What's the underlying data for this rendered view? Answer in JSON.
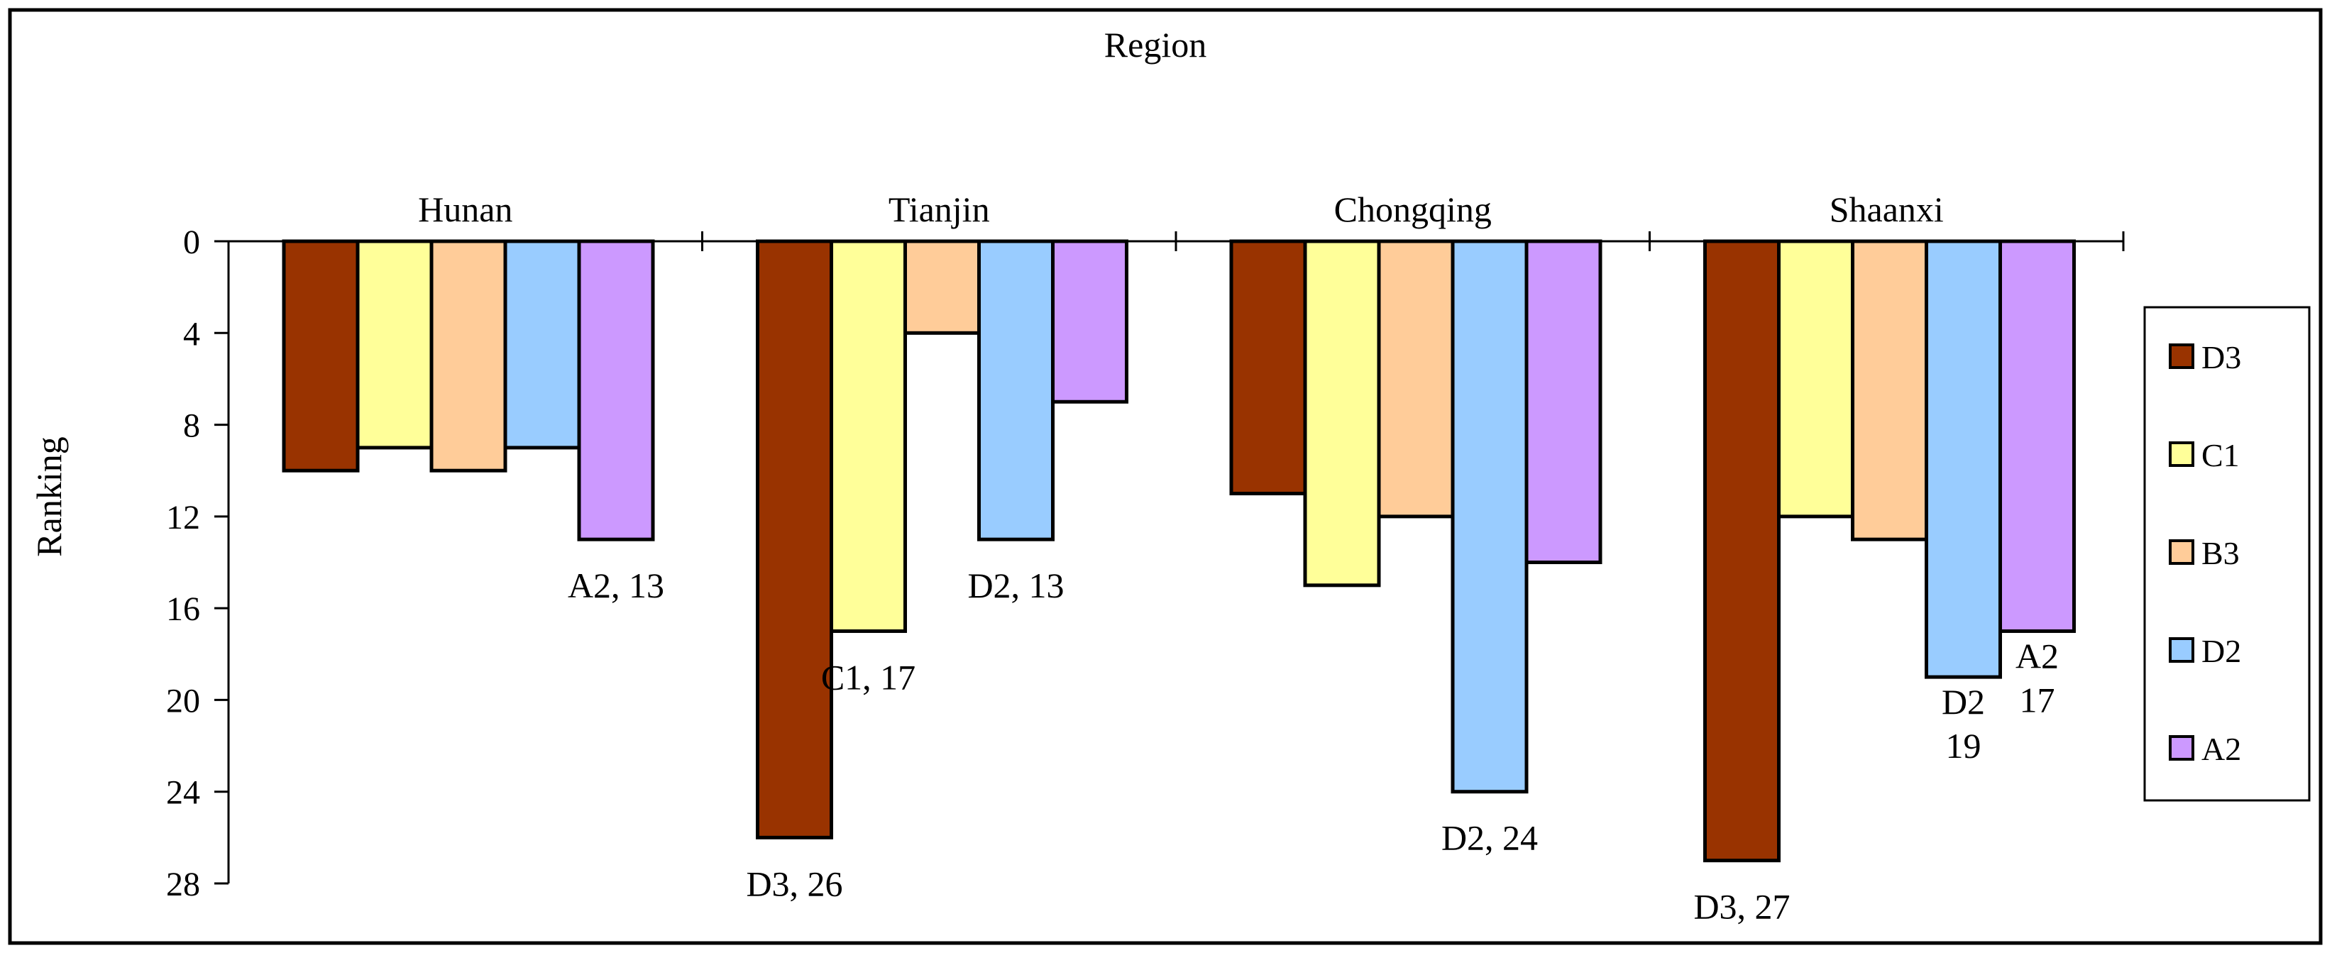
{
  "chart_data": {
    "type": "bar",
    "title": "Region",
    "xlabel": "Region",
    "ylabel": "Ranking",
    "ylim": [
      0,
      28
    ],
    "y_ticks": [
      0,
      4,
      8,
      12,
      16,
      20,
      24,
      28
    ],
    "y_tick_labels": [
      "0",
      "4",
      "8",
      "12",
      "16",
      "20",
      "24",
      "28"
    ],
    "y_inverted": true,
    "x_axis_position": "top",
    "legend_position": "right",
    "categories": [
      "Hunan",
      "Tianjin",
      "Chongqing",
      "Shaanxi"
    ],
    "series": [
      {
        "name": "D3",
        "color": "#993300",
        "values": [
          10,
          26,
          11,
          27
        ]
      },
      {
        "name": "C1",
        "color": "#FFFF99",
        "values": [
          9,
          17,
          15,
          12
        ]
      },
      {
        "name": "B3",
        "color": "#FFCC99",
        "values": [
          10,
          4,
          12,
          13
        ]
      },
      {
        "name": "D2",
        "color": "#99CCFF",
        "values": [
          9,
          13,
          24,
          19
        ]
      },
      {
        "name": "A2",
        "color": "#CC99FF",
        "values": [
          13,
          7,
          14,
          17
        ]
      }
    ],
    "data_labels": [
      {
        "category": "Hunan",
        "series": "A2",
        "text": "A2, 13"
      },
      {
        "category": "Tianjin",
        "series": "D3",
        "text": "D3, 26"
      },
      {
        "category": "Tianjin",
        "series": "C1",
        "text": "C1, 17"
      },
      {
        "category": "Tianjin",
        "series": "D2",
        "text": "D2, 13"
      },
      {
        "category": "Chongqing",
        "series": "D2",
        "text": "D2, 24"
      },
      {
        "category": "Shaanxi",
        "series": "D3",
        "text": "D3, 27"
      },
      {
        "category": "Shaanxi",
        "series": "D2",
        "text": "D2\n19"
      },
      {
        "category": "Shaanxi",
        "series": "A2",
        "text": "A2\n17"
      }
    ]
  }
}
